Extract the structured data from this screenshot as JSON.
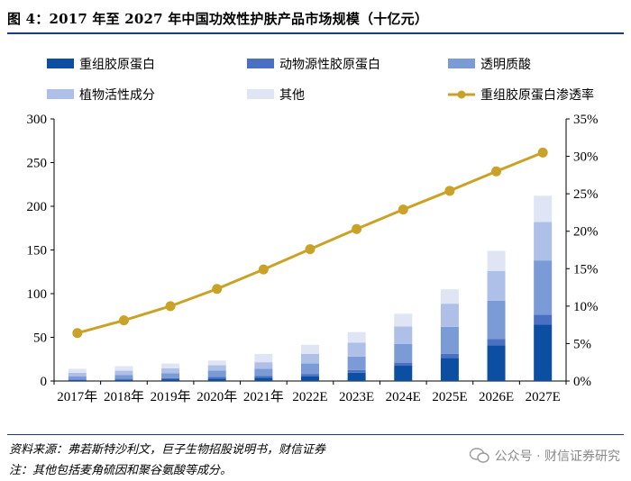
{
  "header": {
    "title": "图 4：2017 年至 2027 年中国功效性护肤产品市场规模（十亿元）"
  },
  "chart_data": {
    "type": "bar",
    "stacked": true,
    "categories": [
      "2017年",
      "2018年",
      "2019年",
      "2020年",
      "2021年",
      "2022E",
      "2023E",
      "2024E",
      "2025E",
      "2026E",
      "2027E"
    ],
    "series": [
      {
        "name": "重组胶原蛋白",
        "color": "#0b4ea2",
        "values": [
          1.0,
          1.4,
          2.0,
          2.8,
          3.8,
          5.5,
          9.5,
          17.5,
          26.5,
          41.0,
          64.5
        ]
      },
      {
        "name": "动物源性胶原蛋白",
        "color": "#4a70c4",
        "values": [
          0.8,
          1.1,
          1.4,
          1.8,
          2.2,
          2.6,
          3.0,
          3.5,
          4.5,
          7.0,
          11.5
        ]
      },
      {
        "name": "透明质酸",
        "color": "#7b9bd6",
        "values": [
          3.7,
          4.5,
          5.6,
          7.4,
          8.0,
          11.9,
          15.5,
          21.5,
          31.0,
          44.0,
          62.0
        ]
      },
      {
        "name": "植物活性成分",
        "color": "#aebfe8",
        "values": [
          4.0,
          4.8,
          5.5,
          6.0,
          7.5,
          11.0,
          16.0,
          20.0,
          26.5,
          34.0,
          44.0
        ]
      },
      {
        "name": "其他",
        "color": "#dfe5f5",
        "values": [
          4.5,
          5.2,
          5.5,
          5.5,
          9.5,
          10.5,
          12.0,
          14.5,
          16.5,
          23.0,
          30.0
        ]
      }
    ],
    "line": {
      "name": "重组胶原蛋白渗透率",
      "color": "#c9a227",
      "axis": "right",
      "values": [
        6.4,
        8.1,
        10.0,
        12.3,
        14.9,
        17.6,
        20.3,
        22.9,
        25.4,
        28.0,
        30.5
      ]
    },
    "y_left": {
      "min": 0,
      "max": 300,
      "ticks": [
        "0",
        "50",
        "100",
        "150",
        "200",
        "250",
        "300"
      ]
    },
    "y_right": {
      "min": 0,
      "max": 35,
      "ticks": [
        "0%",
        "5%",
        "10%",
        "15%",
        "20%",
        "25%",
        "30%",
        "35%"
      ]
    },
    "legend_position": "top"
  },
  "footer": {
    "source": "资料来源：弗若斯特沙利文，巨子生物招股说明书，财信证券",
    "note": "注：其他包括麦角硫因和聚谷氨酸等成分。",
    "watermark": "公众号 · 财信证券研究"
  }
}
